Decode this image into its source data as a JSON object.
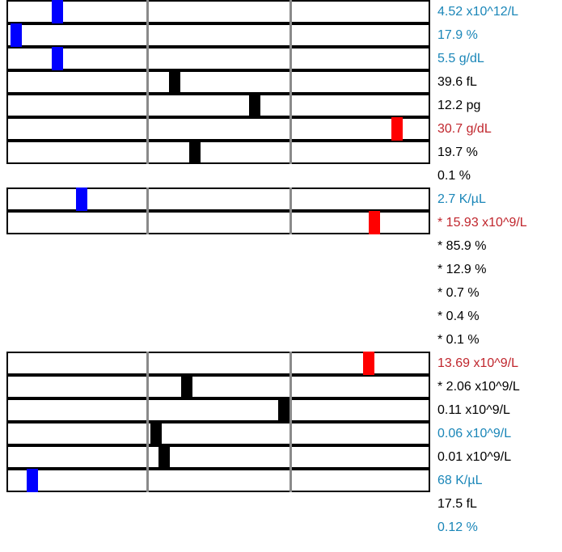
{
  "palette": {
    "low": "#1a86b8",
    "normal": "#000000",
    "high": "#c0262d",
    "marker_low": "#0000ff",
    "marker_normal": "#000000",
    "marker_high": "#ff0000"
  },
  "results": [
    {
      "value": "4.52 x10^12/L",
      "status": "low",
      "gauge": 0.105
    },
    {
      "value": "17.9 %",
      "status": "low",
      "gauge": 0.005
    },
    {
      "value": "5.5 g/dL",
      "status": "low",
      "gauge": 0.105
    },
    {
      "value": "39.6 fL",
      "status": "normal",
      "gauge": 0.39
    },
    {
      "value": "12.2 pg",
      "status": "normal",
      "gauge": 0.585
    },
    {
      "value": "30.7 g/dL",
      "status": "high",
      "gauge": 0.93
    },
    {
      "value": "19.7 %",
      "status": "normal",
      "gauge": 0.44
    },
    {
      "value": "0.1 %",
      "status": "normal",
      "gauge": null
    },
    {
      "value": "2.7 K/µL",
      "status": "low",
      "gauge": 0.165
    },
    {
      "value": "* 15.93 x10^9/L",
      "status": "high",
      "gauge": 0.875
    },
    {
      "value": "* 85.9 %",
      "status": "normal",
      "gauge": null
    },
    {
      "value": "* 12.9 %",
      "status": "normal",
      "gauge": null
    },
    {
      "value": "* 0.7 %",
      "status": "normal",
      "gauge": null
    },
    {
      "value": "* 0.4 %",
      "status": "normal",
      "gauge": null
    },
    {
      "value": "* 0.1 %",
      "status": "normal",
      "gauge": null
    },
    {
      "value": "13.69 x10^9/L",
      "status": "high",
      "gauge": 0.86
    },
    {
      "value": "* 2.06 x10^9/L",
      "status": "normal",
      "gauge": 0.42
    },
    {
      "value": "0.11 x10^9/L",
      "status": "normal",
      "gauge": 0.655
    },
    {
      "value": "0.06 x10^9/L",
      "status": "low",
      "gauge": 0.345,
      "marker_status": "normal"
    },
    {
      "value": "0.01 x10^9/L",
      "status": "normal",
      "gauge": 0.365
    },
    {
      "value": "68 K/µL",
      "status": "low",
      "gauge": 0.045
    },
    {
      "value": "17.5 fL",
      "status": "normal",
      "gauge": null
    },
    {
      "value": "0.12 %",
      "status": "low",
      "gauge": null
    }
  ]
}
